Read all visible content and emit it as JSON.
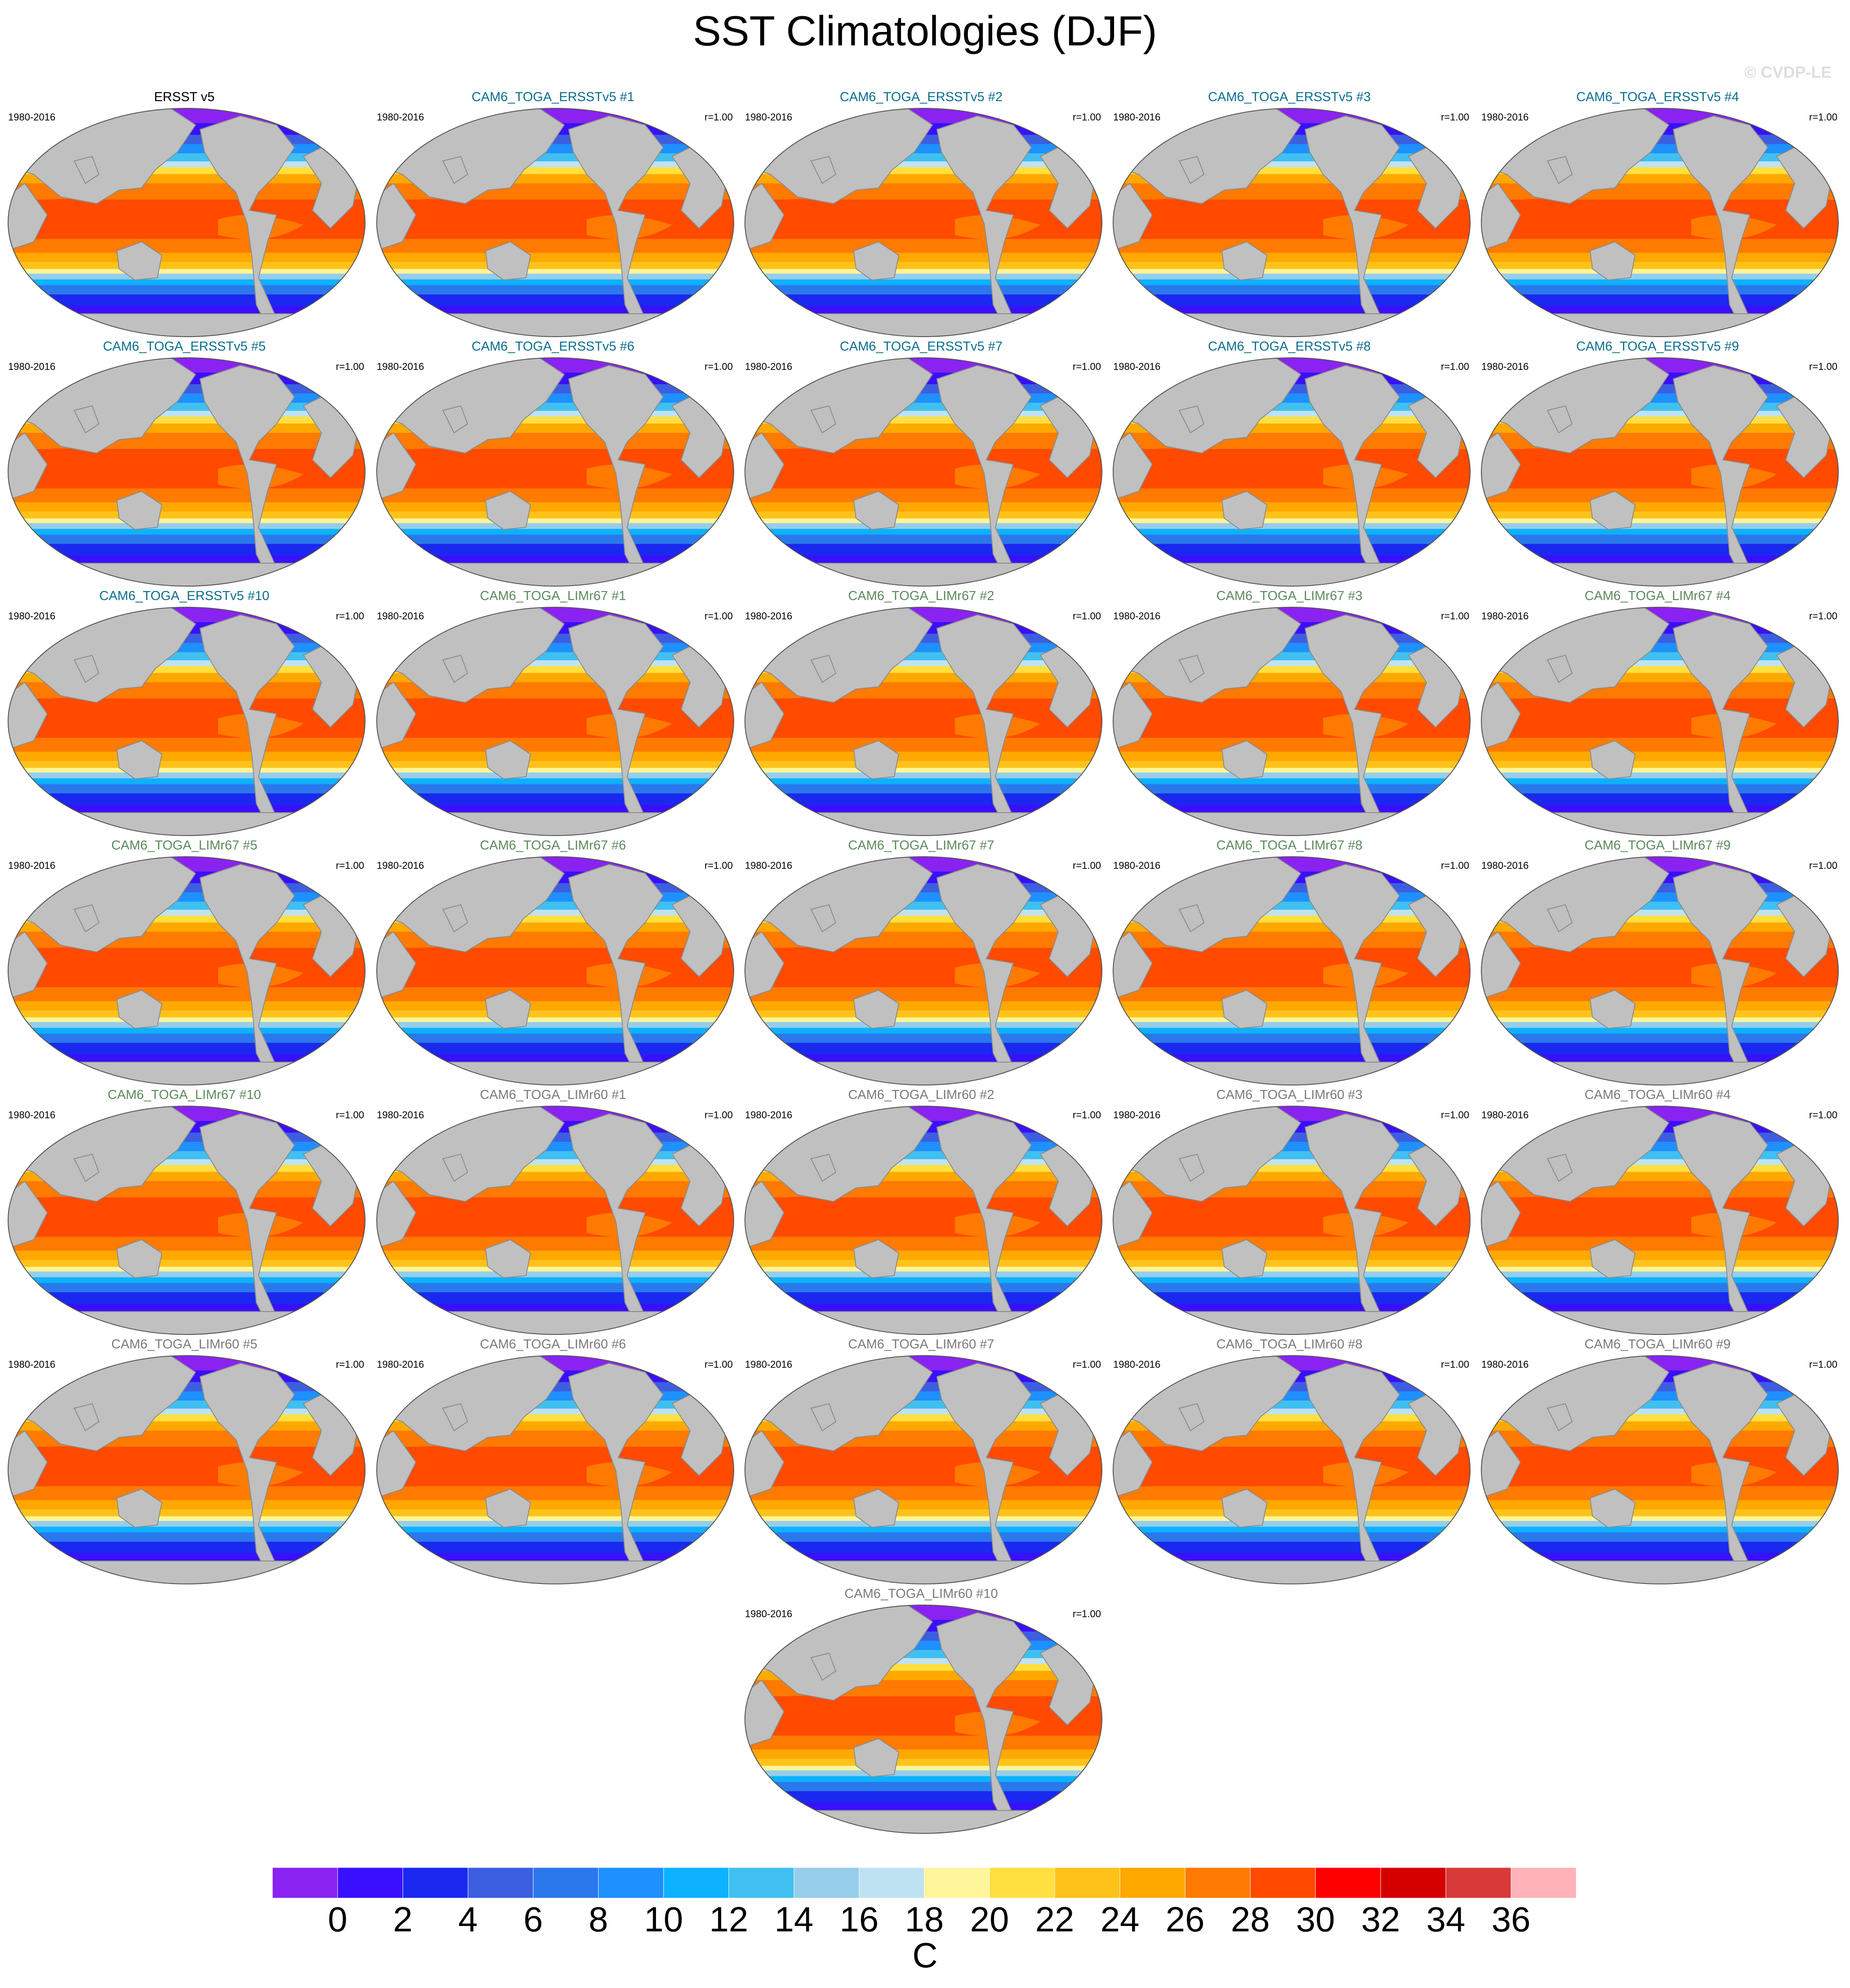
{
  "title": "SST Climatologies (DJF)",
  "watermark": "© CVDP-LE",
  "panels": [
    {
      "title": "ERSST v5",
      "period": "1980-2016",
      "corr": "",
      "title_color": "#000000"
    },
    {
      "title": "CAM6_TOGA_ERSSTv5 #1",
      "period": "1980-2016",
      "corr": "r=1.00",
      "title_color": "#0b6e8e"
    },
    {
      "title": "CAM6_TOGA_ERSSTv5 #2",
      "period": "1980-2016",
      "corr": "r=1.00",
      "title_color": "#0b6e8e"
    },
    {
      "title": "CAM6_TOGA_ERSSTv5 #3",
      "period": "1980-2016",
      "corr": "r=1.00",
      "title_color": "#0b6e8e"
    },
    {
      "title": "CAM6_TOGA_ERSSTv5 #4",
      "period": "1980-2016",
      "corr": "r=1.00",
      "title_color": "#0b6e8e"
    },
    {
      "title": "CAM6_TOGA_ERSSTv5 #5",
      "period": "1980-2016",
      "corr": "r=1.00",
      "title_color": "#0b6e8e"
    },
    {
      "title": "CAM6_TOGA_ERSSTv5 #6",
      "period": "1980-2016",
      "corr": "r=1.00",
      "title_color": "#0b6e8e"
    },
    {
      "title": "CAM6_TOGA_ERSSTv5 #7",
      "period": "1980-2016",
      "corr": "r=1.00",
      "title_color": "#0b6e8e"
    },
    {
      "title": "CAM6_TOGA_ERSSTv5 #8",
      "period": "1980-2016",
      "corr": "r=1.00",
      "title_color": "#0b6e8e"
    },
    {
      "title": "CAM6_TOGA_ERSSTv5 #9",
      "period": "1980-2016",
      "corr": "r=1.00",
      "title_color": "#0b6e8e"
    },
    {
      "title": "CAM6_TOGA_ERSSTv5 #10",
      "period": "1980-2016",
      "corr": "r=1.00",
      "title_color": "#0b6e8e"
    },
    {
      "title": "CAM6_TOGA_LIMr67 #1",
      "period": "1980-2016",
      "corr": "r=1.00",
      "title_color": "#5b8a5b"
    },
    {
      "title": "CAM6_TOGA_LIMr67 #2",
      "period": "1980-2016",
      "corr": "r=1.00",
      "title_color": "#5b8a5b"
    },
    {
      "title": "CAM6_TOGA_LIMr67 #3",
      "period": "1980-2016",
      "corr": "r=1.00",
      "title_color": "#5b8a5b"
    },
    {
      "title": "CAM6_TOGA_LIMr67 #4",
      "period": "1980-2016",
      "corr": "r=1.00",
      "title_color": "#5b8a5b"
    },
    {
      "title": "CAM6_TOGA_LIMr67 #5",
      "period": "1980-2016",
      "corr": "r=1.00",
      "title_color": "#5b8a5b"
    },
    {
      "title": "CAM6_TOGA_LIMr67 #6",
      "period": "1980-2016",
      "corr": "r=1.00",
      "title_color": "#5b8a5b"
    },
    {
      "title": "CAM6_TOGA_LIMr67 #7",
      "period": "1980-2016",
      "corr": "r=1.00",
      "title_color": "#5b8a5b"
    },
    {
      "title": "CAM6_TOGA_LIMr67 #8",
      "period": "1980-2016",
      "corr": "r=1.00",
      "title_color": "#5b8a5b"
    },
    {
      "title": "CAM6_TOGA_LIMr67 #9",
      "period": "1980-2016",
      "corr": "r=1.00",
      "title_color": "#5b8a5b"
    },
    {
      "title": "CAM6_TOGA_LIMr67 #10",
      "period": "1980-2016",
      "corr": "r=1.00",
      "title_color": "#5b8a5b"
    },
    {
      "title": "CAM6_TOGA_LIMr60 #1",
      "period": "1980-2016",
      "corr": "r=1.00",
      "title_color": "#7a7a7a"
    },
    {
      "title": "CAM6_TOGA_LIMr60 #2",
      "period": "1980-2016",
      "corr": "r=1.00",
      "title_color": "#7a7a7a"
    },
    {
      "title": "CAM6_TOGA_LIMr60 #3",
      "period": "1980-2016",
      "corr": "r=1.00",
      "title_color": "#7a7a7a"
    },
    {
      "title": "CAM6_TOGA_LIMr60 #4",
      "period": "1980-2016",
      "corr": "r=1.00",
      "title_color": "#7a7a7a"
    },
    {
      "title": "CAM6_TOGA_LIMr60 #5",
      "period": "1980-2016",
      "corr": "r=1.00",
      "title_color": "#7a7a7a"
    },
    {
      "title": "CAM6_TOGA_LIMr60 #6",
      "period": "1980-2016",
      "corr": "r=1.00",
      "title_color": "#7a7a7a"
    },
    {
      "title": "CAM6_TOGA_LIMr60 #7",
      "period": "1980-2016",
      "corr": "r=1.00",
      "title_color": "#7a7a7a"
    },
    {
      "title": "CAM6_TOGA_LIMr60 #8",
      "period": "1980-2016",
      "corr": "r=1.00",
      "title_color": "#7a7a7a"
    },
    {
      "title": "CAM6_TOGA_LIMr60 #9",
      "period": "1980-2016",
      "corr": "r=1.00",
      "title_color": "#7a7a7a"
    },
    {
      "title": "CAM6_TOGA_LIMr60 #10",
      "period": "1980-2016",
      "corr": "r=1.00",
      "title_color": "#7a7a7a"
    }
  ],
  "colorbar": {
    "unit": "C",
    "ticks": [
      "0",
      "2",
      "4",
      "6",
      "8",
      "10",
      "12",
      "14",
      "16",
      "18",
      "20",
      "22",
      "24",
      "26",
      "28",
      "30",
      "32",
      "34",
      "36"
    ],
    "colors": [
      "#8a22f2",
      "#3a0fff",
      "#1a28f0",
      "#3c5ee0",
      "#2a78ec",
      "#1e90ff",
      "#0cb2ff",
      "#40c0f0",
      "#96cdea",
      "#bfe2f3",
      "#fff59a",
      "#ffe040",
      "#ffc21a",
      "#ffa800",
      "#ff7a00",
      "#ff4a00",
      "#ff0000",
      "#d40000",
      "#d83a3a",
      "#ffb3b8"
    ]
  },
  "colors": {
    "land": "#c0c0c0",
    "coast": "#8c8c8c"
  }
}
